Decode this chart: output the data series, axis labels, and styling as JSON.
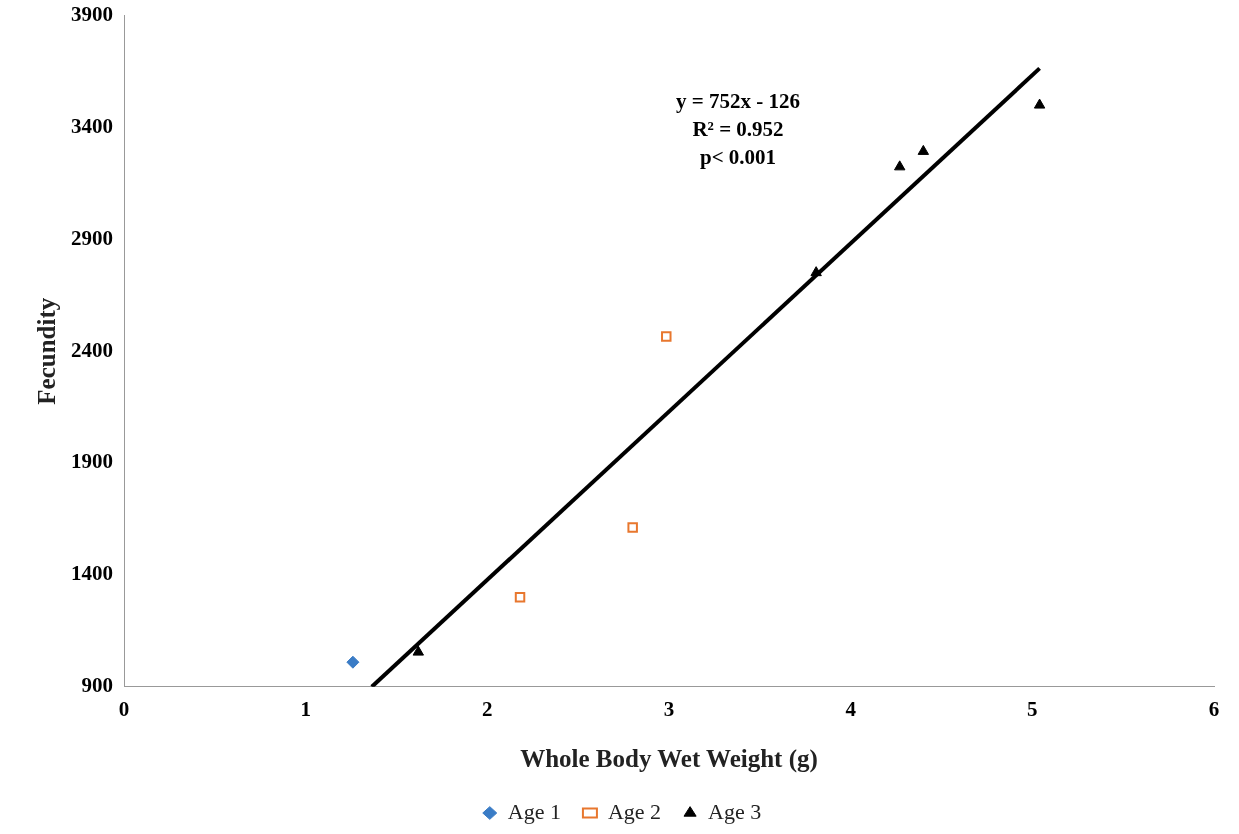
{
  "chart_data": {
    "type": "scatter",
    "xlabel": "Whole Body Wet Weight (g)",
    "ylabel": "Fecundity",
    "xlim": [
      0,
      6
    ],
    "xticks": [
      0,
      1,
      2,
      3,
      4,
      5,
      6
    ],
    "ylim": [
      900,
      3900
    ],
    "yticks": [
      900,
      1400,
      1900,
      2400,
      2900,
      3400,
      3900
    ],
    "grid": false,
    "legend": "bottom",
    "annotations": [
      "y = 752x - 126\nR² = 0.952\np< 0.001"
    ],
    "series": [
      {
        "name": "Age 1",
        "color": "#3a7cc6",
        "marker": "diamond",
        "x": [
          1.26
        ],
        "values": [
          1010
        ]
      },
      {
        "name": "Age 2",
        "color": "#e8772e",
        "marker": "square",
        "x": [
          2.18,
          2.8,
          2.985
        ],
        "values": [
          1300,
          1612,
          2466
        ]
      },
      {
        "name": "Age 3",
        "color": "#000000",
        "marker": "triangle",
        "x": [
          1.62,
          3.81,
          4.27,
          4.4,
          5.04
        ],
        "values": [
          1055,
          2751,
          3224,
          3293,
          3500
        ]
      },
      {
        "type": "line",
        "color": "#000000",
        "marker": "none",
        "x": [
          1.364,
          5.04
        ],
        "values": [
          900,
          3664
        ]
      }
    ]
  }
}
